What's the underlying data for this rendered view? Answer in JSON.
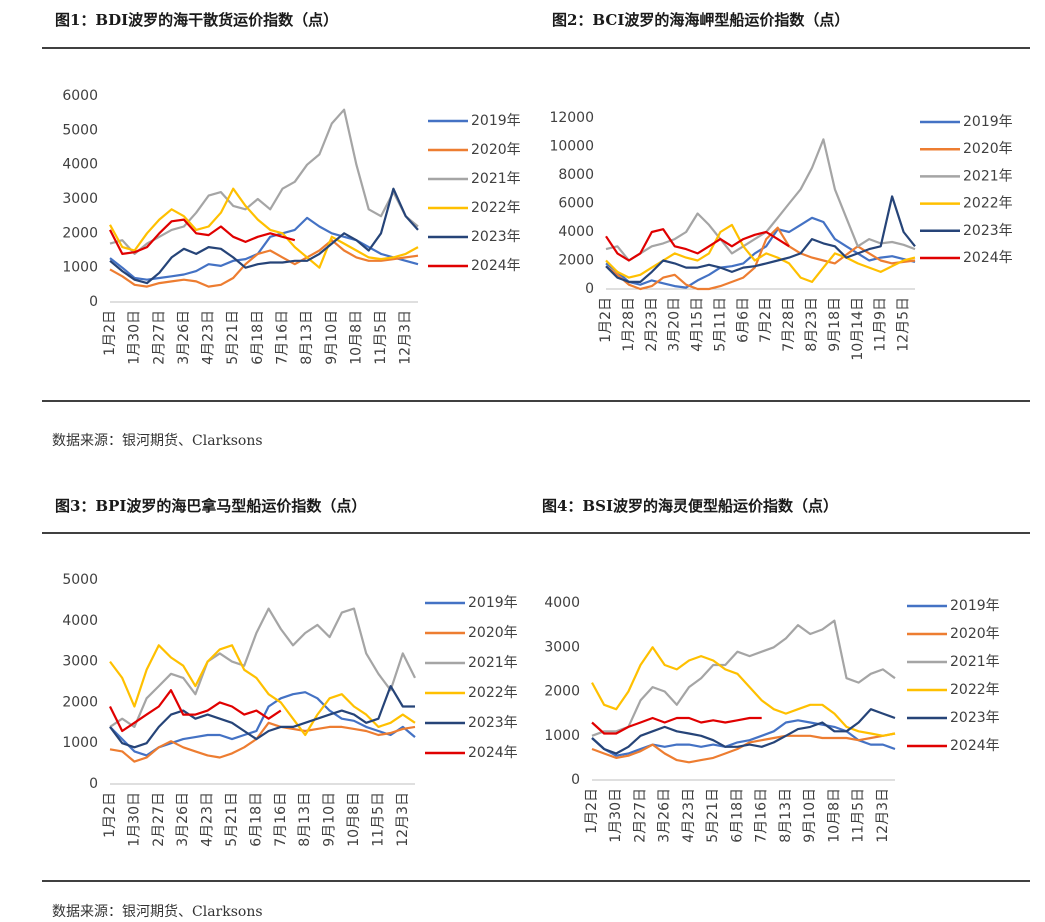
{
  "chart_data": [
    {
      "type": "line",
      "title": "图1：BDI波罗的海干散货运价指数（点）",
      "categories": [
        "1月2日",
        null,
        "1月30日",
        null,
        "2月27日",
        null,
        "3月26日",
        null,
        "4月23日",
        null,
        "5月21日",
        null,
        "6月18日",
        null,
        "7月16日",
        null,
        "8月13日",
        null,
        "9月10日",
        null,
        "10月8日",
        null,
        "11月5日",
        null,
        "12月3日",
        null
      ],
      "ylim": [
        0,
        6000
      ],
      "yticks": [
        0,
        1000,
        2000,
        3000,
        4000,
        5000,
        6000
      ],
      "series": [
        {
          "name": "2019年",
          "color": "#4472c4",
          "values": [
            1280,
            1000,
            700,
            650,
            700,
            750,
            800,
            900,
            1100,
            1050,
            1200,
            1250,
            1400,
            1900,
            2000,
            2100,
            2450,
            2200,
            2000,
            1900,
            1800,
            1600,
            1400,
            1300,
            1200,
            1100
          ]
        },
        {
          "name": "2020年",
          "color": "#ed7d31",
          "values": [
            950,
            750,
            500,
            450,
            550,
            600,
            650,
            600,
            450,
            500,
            700,
            1100,
            1400,
            1500,
            1300,
            1100,
            1300,
            1500,
            1800,
            1500,
            1300,
            1200,
            1200,
            1250,
            1300,
            1350
          ]
        },
        {
          "name": "2021年",
          "color": "#a5a5a5",
          "values": [
            1700,
            1800,
            1400,
            1700,
            1900,
            2100,
            2200,
            2600,
            3100,
            3200,
            2800,
            2700,
            3000,
            2700,
            3300,
            3500,
            4000,
            4300,
            5200,
            5600,
            4000,
            2700,
            2500,
            3200,
            2500,
            2200
          ]
        },
        {
          "name": "2022年",
          "color": "#ffc000",
          "values": [
            2250,
            1600,
            1500,
            2000,
            2400,
            2700,
            2500,
            2100,
            2200,
            2600,
            3300,
            2800,
            2400,
            2100,
            2000,
            1600,
            1300,
            1000,
            1900,
            1700,
            1500,
            1300,
            1250,
            1300,
            1400,
            1600
          ]
        },
        {
          "name": "2023年",
          "color": "#264478",
          "values": [
            1200,
            900,
            650,
            550,
            850,
            1300,
            1550,
            1400,
            1600,
            1550,
            1300,
            1000,
            1100,
            1150,
            1150,
            1200,
            1200,
            1400,
            1700,
            2000,
            1800,
            1500,
            2000,
            3300,
            2500,
            2100
          ]
        },
        {
          "name": "2024年",
          "color": "#e00000",
          "values": [
            2100,
            1400,
            1450,
            1600,
            2000,
            2350,
            2400,
            2000,
            1950,
            2200,
            1900,
            1750,
            1900,
            2000,
            1900,
            1800,
            null,
            null,
            null,
            null,
            null,
            null,
            null,
            null,
            null,
            null
          ]
        }
      ]
    },
    {
      "type": "line",
      "title": "图2：BCI波罗的海海岬型船运价指数（点）",
      "categories": [
        "1月2日",
        null,
        "1月28日",
        null,
        "2月23日",
        null,
        "3月20日",
        null,
        "4月15日",
        null,
        "5月11日",
        null,
        "6月6日",
        null,
        "7月2日",
        null,
        "7月28日",
        null,
        "8月23日",
        null,
        "9月18日",
        null,
        "10月14日",
        null,
        "11月9日",
        null,
        "12月5日",
        null
      ],
      "ylim": [
        0,
        12000
      ],
      "yticks": [
        0,
        2000,
        4000,
        6000,
        8000,
        10000,
        12000
      ],
      "series": [
        {
          "name": "2019年",
          "color": "#4472c4",
          "values": [
            1800,
            1200,
            500,
            300,
            600,
            400,
            200,
            100,
            600,
            1000,
            1500,
            1600,
            1800,
            2500,
            3000,
            4200,
            4000,
            4500,
            5000,
            4700,
            3500,
            3000,
            2500,
            2000,
            2200,
            2300,
            2100,
            1900
          ]
        },
        {
          "name": "2020年",
          "color": "#ed7d31",
          "values": [
            1600,
            1000,
            300,
            0,
            200,
            800,
            1000,
            300,
            0,
            0,
            200,
            500,
            800,
            1500,
            3500,
            4300,
            3000,
            2500,
            2200,
            2000,
            1800,
            2400,
            3000,
            2500,
            2000,
            1800,
            1900,
            2000
          ]
        },
        {
          "name": "2021年",
          "color": "#a5a5a5",
          "values": [
            2800,
            3000,
            2000,
            2500,
            3000,
            3200,
            3500,
            4000,
            5300,
            4500,
            3500,
            2500,
            3000,
            3500,
            4000,
            5000,
            6000,
            7000,
            8500,
            10500,
            7000,
            5000,
            3000,
            3500,
            3200,
            3300,
            3100,
            2800
          ]
        },
        {
          "name": "2022年",
          "color": "#ffc000",
          "values": [
            2000,
            1200,
            800,
            1000,
            1500,
            2000,
            2500,
            2200,
            2000,
            2500,
            4000,
            4500,
            3000,
            2000,
            2500,
            2200,
            1800,
            800,
            500,
            1500,
            2500,
            2200,
            1800,
            1500,
            1200,
            1600,
            2000,
            2200
          ]
        },
        {
          "name": "2023年",
          "color": "#264478",
          "values": [
            1600,
            800,
            500,
            500,
            1200,
            2000,
            1800,
            1500,
            1500,
            1700,
            1500,
            1200,
            1500,
            1600,
            1800,
            2000,
            2200,
            2500,
            3500,
            3200,
            3000,
            2200,
            2500,
            2800,
            3000,
            6500,
            4000,
            3000
          ]
        },
        {
          "name": "2024年",
          "color": "#e00000",
          "values": [
            3700,
            2500,
            2000,
            2500,
            4000,
            4200,
            3000,
            2800,
            2500,
            3000,
            3500,
            3000,
            3500,
            3800,
            4000,
            3500,
            3000,
            null,
            null,
            null,
            null,
            null,
            null,
            null,
            null,
            null,
            null,
            null
          ]
        }
      ]
    },
    {
      "type": "line",
      "title": "图3：BPI波罗的海巴拿马型船运价指数（点）",
      "categories": [
        "1月2日",
        null,
        "1月30日",
        null,
        "2月27日",
        null,
        "3月26日",
        null,
        "4月23日",
        null,
        "5月21日",
        null,
        "6月18日",
        null,
        "7月16日",
        null,
        "8月13日",
        null,
        "9月10日",
        null,
        "10月8日",
        null,
        "11月5日",
        null,
        "12月3日",
        null
      ],
      "ylim": [
        0,
        5000
      ],
      "yticks": [
        0,
        1000,
        2000,
        3000,
        4000,
        5000
      ],
      "series": [
        {
          "name": "2019年",
          "color": "#4472c4",
          "values": [
            1400,
            1100,
            800,
            700,
            900,
            1000,
            1100,
            1150,
            1200,
            1200,
            1100,
            1200,
            1300,
            1900,
            2100,
            2200,
            2250,
            2100,
            1800,
            1600,
            1550,
            1400,
            1300,
            1200,
            1400,
            1150
          ]
        },
        {
          "name": "2020年",
          "color": "#ed7d31",
          "values": [
            850,
            800,
            550,
            650,
            900,
            1050,
            900,
            800,
            700,
            650,
            750,
            900,
            1100,
            1500,
            1400,
            1350,
            1300,
            1350,
            1400,
            1400,
            1350,
            1300,
            1200,
            1250,
            1350,
            1400
          ]
        },
        {
          "name": "2021年",
          "color": "#a5a5a5",
          "values": [
            1400,
            1600,
            1400,
            2100,
            2400,
            2700,
            2600,
            2200,
            3000,
            3200,
            3000,
            2900,
            3700,
            4300,
            3800,
            3400,
            3700,
            3900,
            3600,
            4200,
            4300,
            3200,
            2700,
            2300,
            3200,
            2600
          ]
        },
        {
          "name": "2022年",
          "color": "#ffc000",
          "values": [
            3000,
            2600,
            1900,
            2800,
            3400,
            3100,
            2900,
            2400,
            3000,
            3300,
            3400,
            2800,
            2600,
            2200,
            2000,
            1600,
            1200,
            1700,
            2100,
            2200,
            1900,
            1700,
            1400,
            1500,
            1700,
            1500
          ]
        },
        {
          "name": "2023年",
          "color": "#264478",
          "values": [
            1400,
            1000,
            900,
            1000,
            1400,
            1700,
            1800,
            1600,
            1700,
            1600,
            1500,
            1300,
            1100,
            1300,
            1400,
            1400,
            1500,
            1600,
            1700,
            1800,
            1700,
            1500,
            1600,
            2400,
            1900,
            1900
          ]
        },
        {
          "name": "2024年",
          "color": "#e00000",
          "values": [
            1900,
            1300,
            1500,
            1700,
            1900,
            2300,
            1700,
            1700,
            1800,
            2000,
            1900,
            1700,
            1800,
            1600,
            1800,
            null,
            null,
            null,
            null,
            null,
            null,
            null,
            null,
            null,
            null,
            null
          ]
        }
      ]
    },
    {
      "type": "line",
      "title": "图4：BSI波罗的海灵便型船运价指数（点）",
      "categories": [
        "1月2日",
        null,
        "1月30日",
        null,
        "2月27日",
        null,
        "3月26日",
        null,
        "4月23日",
        null,
        "5月21日",
        null,
        "6月18日",
        null,
        "7月16日",
        null,
        "8月13日",
        null,
        "9月10日",
        null,
        "10月8日",
        null,
        "11月5日",
        null,
        "12月3日",
        null
      ],
      "ylim": [
        0,
        4000
      ],
      "yticks": [
        0,
        1000,
        2000,
        3000,
        4000
      ],
      "series": [
        {
          "name": "2019年",
          "color": "#4472c4",
          "values": [
            950,
            700,
            550,
            600,
            700,
            800,
            750,
            800,
            800,
            750,
            800,
            750,
            850,
            900,
            1000,
            1100,
            1300,
            1350,
            1300,
            1250,
            1200,
            1100,
            900,
            800,
            800,
            700
          ]
        },
        {
          "name": "2020年",
          "color": "#ed7d31",
          "values": [
            700,
            600,
            500,
            550,
            650,
            800,
            600,
            450,
            400,
            450,
            500,
            600,
            700,
            850,
            900,
            950,
            1000,
            1000,
            1000,
            950,
            950,
            950,
            900,
            950,
            1000,
            1050
          ]
        },
        {
          "name": "2021年",
          "color": "#a5a5a5",
          "values": [
            1000,
            1100,
            1100,
            1200,
            1800,
            2100,
            2000,
            1700,
            2100,
            2300,
            2600,
            2600,
            2900,
            2800,
            2900,
            3000,
            3200,
            3500,
            3300,
            3400,
            3600,
            2300,
            2200,
            2400,
            2500,
            2300
          ]
        },
        {
          "name": "2022年",
          "color": "#ffc000",
          "values": [
            2200,
            1700,
            1600,
            2000,
            2600,
            3000,
            2600,
            2500,
            2700,
            2800,
            2700,
            2500,
            2400,
            2100,
            1800,
            1600,
            1500,
            1600,
            1700,
            1700,
            1500,
            1200,
            1100,
            1050,
            1000,
            1050
          ]
        },
        {
          "name": "2023年",
          "color": "#264478",
          "values": [
            950,
            700,
            600,
            750,
            1000,
            1100,
            1200,
            1100,
            1050,
            1000,
            900,
            750,
            750,
            800,
            750,
            850,
            1000,
            1150,
            1200,
            1300,
            1100,
            1100,
            1300,
            1600,
            1500,
            1400
          ]
        },
        {
          "name": "2024年",
          "color": "#e00000",
          "values": [
            1300,
            1050,
            1050,
            1200,
            1300,
            1400,
            1300,
            1400,
            1400,
            1300,
            1350,
            1300,
            1350,
            1400,
            1400,
            null,
            null,
            null,
            null,
            null,
            null,
            null,
            null,
            null,
            null,
            null
          ]
        }
      ]
    }
  ],
  "sources": [
    "数据来源：银河期货、Clarksons",
    "数据来源：银河期货、Clarksons"
  ]
}
